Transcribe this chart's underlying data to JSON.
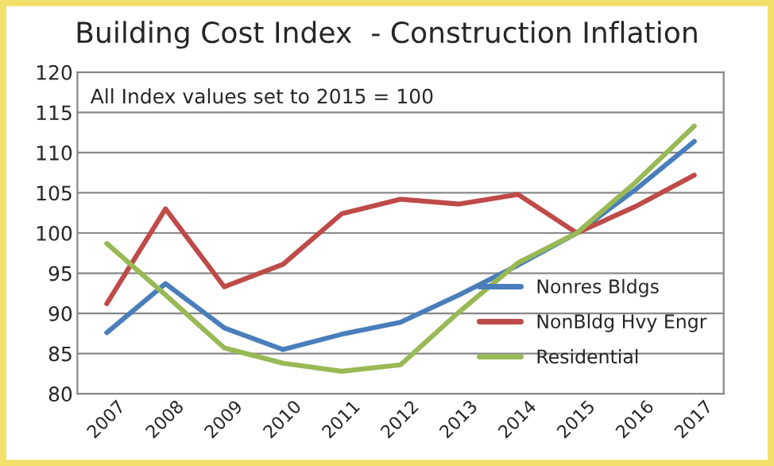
{
  "chart_data": {
    "type": "line",
    "title": "Building Cost Index  - Construction Inflation",
    "annotations": [
      "All Index values set to 2015 = 100"
    ],
    "categories": [
      "2007",
      "2008",
      "2009",
      "2010",
      "2011",
      "2012",
      "2013",
      "2014",
      "2015",
      "2016",
      "2017"
    ],
    "series": [
      {
        "name": "Nonres Bldgs",
        "color": "#4a7ebb",
        "values": [
          87.6,
          93.7,
          88.2,
          85.5,
          87.4,
          88.9,
          92.3,
          96.0,
          100,
          105.4,
          111.4
        ]
      },
      {
        "name": "NonBldg Hvy Engr",
        "color": "#be4b48",
        "values": [
          91.2,
          103.0,
          93.3,
          96.1,
          102.4,
          104.2,
          103.6,
          104.8,
          100,
          103.3,
          107.2
        ]
      },
      {
        "name": "Residential",
        "color": "#98b954",
        "values": [
          98.7,
          92.3,
          85.7,
          83.8,
          82.8,
          83.6,
          90.2,
          96.3,
          100,
          106.3,
          113.3
        ]
      }
    ],
    "ylim": [
      80,
      120
    ],
    "yticks": [
      80,
      85,
      90,
      95,
      100,
      105,
      110,
      115,
      120
    ],
    "grid": "y",
    "legend": "right",
    "marker": "none",
    "line_style": "solid"
  }
}
